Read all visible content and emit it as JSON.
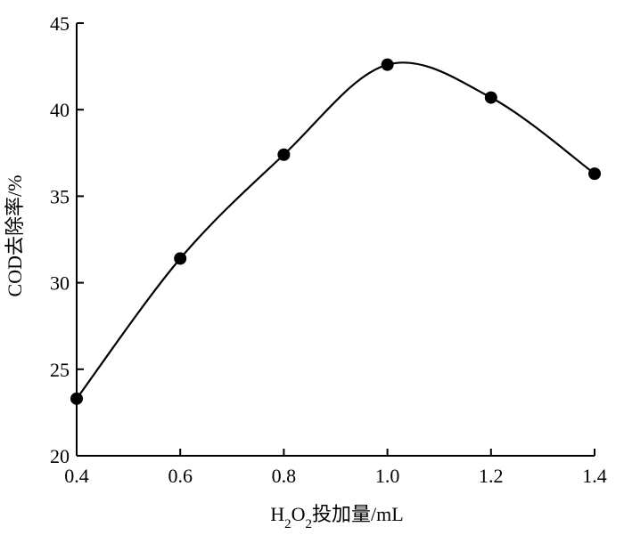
{
  "chart_data": {
    "type": "line",
    "xlabel": {
      "main1": "H",
      "sub1": "2",
      "main2": "O",
      "sub2": "2",
      "rest": "投加量/mL"
    },
    "ylabel": "COD去除率/%",
    "xlim": [
      0.4,
      1.4
    ],
    "ylim": [
      20,
      45
    ],
    "xticks": [
      0.4,
      0.6,
      0.8,
      1.0,
      1.2,
      1.4
    ],
    "xtick_labels": [
      "0.4",
      "0.6",
      "0.8",
      "1.0",
      "1.2",
      "1.4"
    ],
    "yticks": [
      20,
      25,
      30,
      35,
      40,
      45
    ],
    "ytick_labels": [
      "20",
      "25",
      "30",
      "35",
      "40",
      "45"
    ],
    "grid": false,
    "series": [
      {
        "x": [
          0.4,
          0.6,
          0.8,
          1.0,
          1.2,
          1.4
        ],
        "y": [
          23.3,
          31.4,
          37.4,
          42.6,
          40.7,
          36.3
        ],
        "color": "#000000",
        "marker": "circle",
        "smooth": true
      }
    ]
  }
}
